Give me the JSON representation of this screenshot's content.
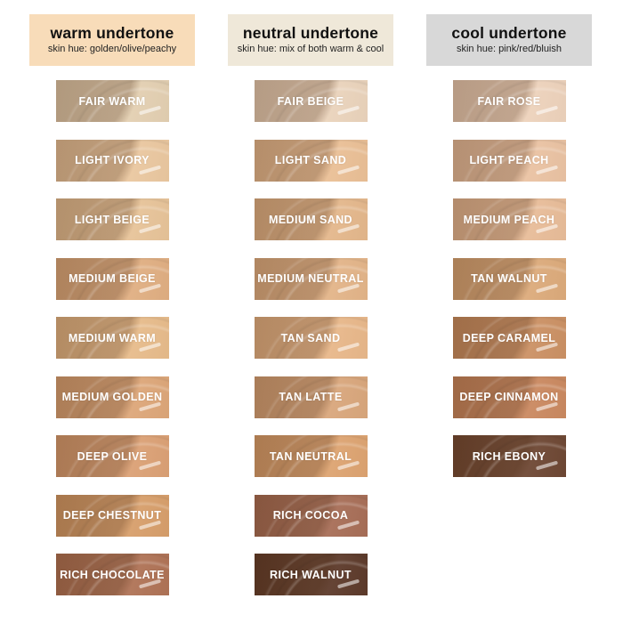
{
  "page": {
    "background": "#ffffff"
  },
  "columns": [
    {
      "id": "warm",
      "header": {
        "title": "warm undertone",
        "subtitle": "skin hue: golden/olive/peachy",
        "bg": "#F8DCB9"
      },
      "shades": [
        {
          "name": "FAIR WARM",
          "color": "#E5D1B3"
        },
        {
          "name": "LIGHT IVORY",
          "color": "#ECC9A1"
        },
        {
          "name": "LIGHT BEIGE",
          "color": "#E9C59A"
        },
        {
          "name": "MEDIUM BEIGE",
          "color": "#E2B083"
        },
        {
          "name": "MEDIUM WARM",
          "color": "#E9BD8C"
        },
        {
          "name": "MEDIUM GOLDEN",
          "color": "#DFA87A"
        },
        {
          "name": "DEEP OLIVE",
          "color": "#DDA276"
        },
        {
          "name": "DEEP CHESTNUT",
          "color": "#D9A06C"
        },
        {
          "name": "RICH CHOCOLATE",
          "color": "#B17457"
        }
      ]
    },
    {
      "id": "neutral",
      "header": {
        "title": "neutral undertone",
        "subtitle": "skin hue: mix of both warm & cool",
        "bg": "#EFE8D9"
      },
      "shades": [
        {
          "name": "FAIR BEIGE",
          "color": "#ECD5BD"
        },
        {
          "name": "LIGHT SAND",
          "color": "#ECC197"
        },
        {
          "name": "MEDIUM SAND",
          "color": "#E6B98D"
        },
        {
          "name": "MEDIUM NEUTRAL",
          "color": "#E5B68A"
        },
        {
          "name": "TAN SAND",
          "color": "#EAB98B"
        },
        {
          "name": "TAN LATTE",
          "color": "#DBA87D"
        },
        {
          "name": "TAN NEUTRAL",
          "color": "#DFA572"
        },
        {
          "name": "RICH COCOA",
          "color": "#A96F58"
        },
        {
          "name": "RICH WALNUT",
          "color": "#5E3B2B"
        }
      ]
    },
    {
      "id": "cool",
      "header": {
        "title": "cool undertone",
        "subtitle": "skin hue: pink/red/bluish",
        "bg": "#D8D8D8"
      },
      "shades": [
        {
          "name": "FAIR ROSE",
          "color": "#EFD4BD"
        },
        {
          "name": "LIGHT PEACH",
          "color": "#ECC4A4"
        },
        {
          "name": "MEDIUM PEACH",
          "color": "#EABE9A"
        },
        {
          "name": "TAN WALNUT",
          "color": "#DEAC7C"
        },
        {
          "name": "DEEP CARAMEL",
          "color": "#CD9265"
        },
        {
          "name": "DEEP CINNAMON",
          "color": "#CC8A61"
        },
        {
          "name": "RICH EBONY",
          "color": "#6F4834"
        }
      ]
    }
  ]
}
